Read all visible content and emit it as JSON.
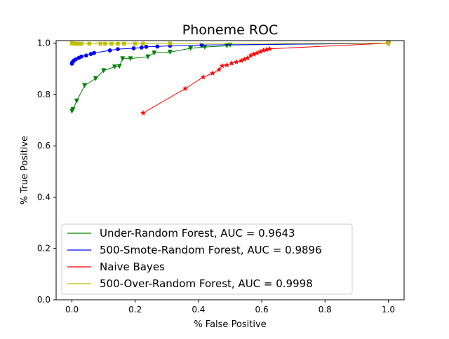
{
  "chart_data": {
    "type": "line",
    "title": "Phoneme ROC",
    "xlabel": "% False Positive",
    "ylabel": "% True Positive",
    "xlim": [
      -0.05,
      1.05
    ],
    "ylim": [
      0.0,
      1.01
    ],
    "xticks": [
      0.0,
      0.2,
      0.4,
      0.6,
      0.8,
      1.0
    ],
    "yticks": [
      0.0,
      0.2,
      0.4,
      0.6,
      0.8,
      1.0
    ],
    "xtick_labels": [
      "0.0",
      "0.2",
      "0.4",
      "0.6",
      "0.8",
      "1.0"
    ],
    "ytick_labels": [
      "0.0",
      "0.2",
      "0.4",
      "0.6",
      "0.8",
      "1.0"
    ],
    "grid": false,
    "legend_position": "lower-right",
    "series": [
      {
        "name": "Under-Random Forest, AUC = 0.9643",
        "color": "#008000",
        "marker": "triangle-down",
        "x": [
          0.0,
          0.003,
          0.015,
          0.04,
          0.075,
          0.1,
          0.135,
          0.15,
          0.16,
          0.185,
          0.24,
          0.26,
          0.31,
          0.375,
          0.42,
          0.49,
          0.5,
          1.0
        ],
        "y": [
          0.735,
          0.742,
          0.775,
          0.835,
          0.862,
          0.893,
          0.908,
          0.91,
          0.94,
          0.94,
          0.947,
          0.962,
          0.965,
          0.98,
          0.985,
          0.99,
          0.993,
          1.0
        ]
      },
      {
        "name": "500-Smote-Random Forest, AUC = 0.9896",
        "color": "#0000ff",
        "marker": "circle",
        "x": [
          0.0,
          0.001,
          0.003,
          0.006,
          0.012,
          0.022,
          0.03,
          0.045,
          0.06,
          0.07,
          0.12,
          0.145,
          0.195,
          0.22,
          0.235,
          0.27,
          0.31,
          0.41,
          1.0
        ],
        "y": [
          0.92,
          0.925,
          0.928,
          0.932,
          0.937,
          0.943,
          0.948,
          0.952,
          0.958,
          0.962,
          0.972,
          0.977,
          0.98,
          0.983,
          0.986,
          0.987,
          0.99,
          0.993,
          1.0
        ]
      },
      {
        "name": "Naive Bayes",
        "color": "#ff0000",
        "marker": "star",
        "x": [
          0.225,
          0.358,
          0.415,
          0.445,
          0.465,
          0.475,
          0.49,
          0.505,
          0.52,
          0.535,
          0.545,
          0.555,
          0.565,
          0.575,
          0.585,
          0.595,
          0.605,
          0.615,
          0.625,
          1.0
        ],
        "y": [
          0.728,
          0.823,
          0.868,
          0.883,
          0.897,
          0.912,
          0.915,
          0.922,
          0.927,
          0.932,
          0.937,
          0.942,
          0.952,
          0.957,
          0.962,
          0.967,
          0.972,
          0.975,
          0.978,
          1.0
        ]
      },
      {
        "name": "500-Over-Random Forest, AUC = 0.9998",
        "color": "#bfbf00",
        "marker": "square",
        "x": [
          0.0,
          0.003,
          0.006,
          0.012,
          0.02,
          0.03,
          0.055,
          0.09,
          0.105,
          0.125,
          0.145,
          0.165,
          0.2,
          0.225,
          0.31,
          1.0
        ],
        "y": [
          1.0,
          0.999,
          0.998,
          0.998,
          0.998,
          0.998,
          0.998,
          0.998,
          0.998,
          0.998,
          0.998,
          0.998,
          0.998,
          0.998,
          0.999,
          1.0
        ]
      }
    ]
  }
}
